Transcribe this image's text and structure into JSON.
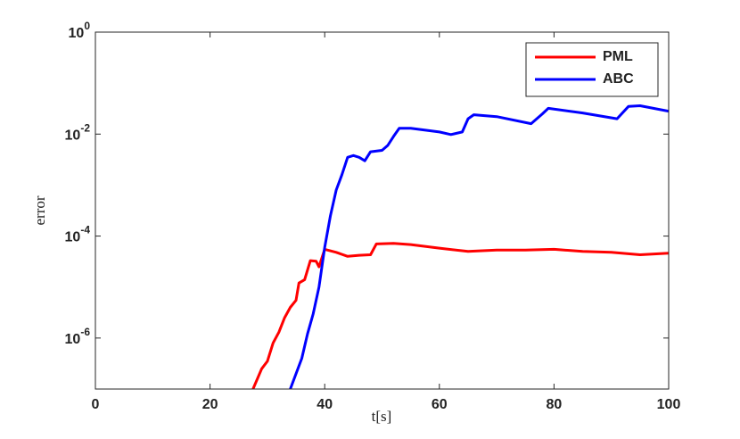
{
  "chart_data": {
    "type": "line",
    "xlabel": "t[s]",
    "ylabel": "error",
    "log_y": true,
    "legend": "upper right",
    "xlim": [
      0,
      100
    ],
    "xticks": [
      0,
      20,
      40,
      60,
      80,
      100
    ],
    "ylim": [
      1e-07,
      1
    ],
    "yticks": [
      {
        "value": 1,
        "label": "10^0"
      },
      {
        "value": 0.01,
        "label": "10^-2"
      },
      {
        "value": 0.0001,
        "label": "10^-4"
      },
      {
        "value": 1e-06,
        "label": "10^-6"
      }
    ],
    "series": [
      {
        "name": "PML",
        "color": "#ff0000",
        "x": [
          27.5,
          29,
          30,
          31,
          32,
          33,
          34,
          35,
          35.5,
          36.5,
          37.5,
          38.5,
          39,
          40,
          42,
          44,
          46,
          48,
          49,
          52,
          55,
          60,
          65,
          70,
          75,
          80,
          85,
          90,
          95,
          100
        ],
        "values": [
          1e-07,
          2.5e-07,
          3.5e-07,
          8e-07,
          1.3e-06,
          2.5e-06,
          4e-06,
          5.5e-06,
          1.2e-05,
          1.4e-05,
          3.3e-05,
          3.2e-05,
          2.5e-05,
          5.5e-05,
          4.8e-05,
          4e-05,
          4.2e-05,
          4.3e-05,
          7e-05,
          7.2e-05,
          6.8e-05,
          5.8e-05,
          5e-05,
          5.3e-05,
          5.3e-05,
          5.5e-05,
          5e-05,
          4.8e-05,
          4.3e-05,
          4.6e-05
        ]
      },
      {
        "name": "ABC",
        "color": "#0000ff",
        "x": [
          34,
          36,
          37,
          38,
          39,
          40,
          41,
          42,
          43,
          44,
          45,
          46,
          47,
          48,
          50,
          51,
          52,
          53,
          55,
          60,
          62,
          64,
          65,
          66,
          70,
          76,
          78,
          79,
          85,
          91,
          93,
          95,
          100
        ],
        "values": [
          1e-07,
          4e-07,
          1.2e-06,
          3e-06,
          1e-05,
          6e-05,
          0.00025,
          0.0008,
          0.0016,
          0.0035,
          0.0038,
          0.0035,
          0.003,
          0.0045,
          0.0048,
          0.006,
          0.009,
          0.013,
          0.013,
          0.011,
          0.0098,
          0.011,
          0.02,
          0.024,
          0.022,
          0.016,
          0.025,
          0.032,
          0.026,
          0.02,
          0.035,
          0.036,
          0.028
        ]
      }
    ]
  }
}
